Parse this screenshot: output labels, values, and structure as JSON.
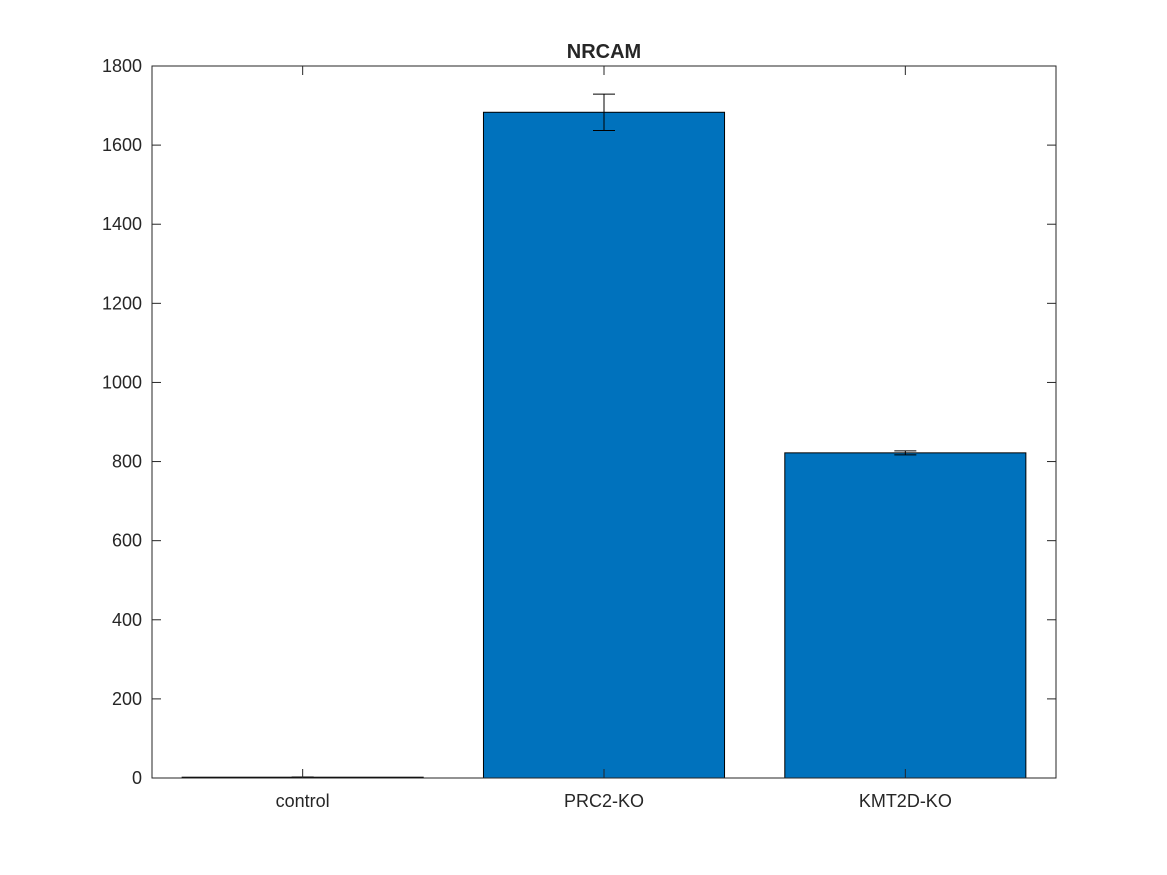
{
  "chart_data": {
    "type": "bar",
    "title": "NRCAM",
    "xlabel": "",
    "ylabel": "",
    "categories": [
      "control",
      "PRC2-KO",
      "KMT2D-KO"
    ],
    "values": [
      2,
      1683,
      822
    ],
    "errors": [
      0.5,
      46,
      5
    ],
    "ylim": [
      0,
      1800
    ],
    "yticks": [
      0,
      200,
      400,
      600,
      800,
      1000,
      1200,
      1400,
      1600,
      1800
    ],
    "yticklabels": [
      "0",
      "200",
      "400",
      "600",
      "800",
      "1000",
      "1200",
      "1400",
      "1600",
      "1800"
    ],
    "grid": false,
    "bar_color": "#0072BD",
    "axis_color": "#262626"
  }
}
